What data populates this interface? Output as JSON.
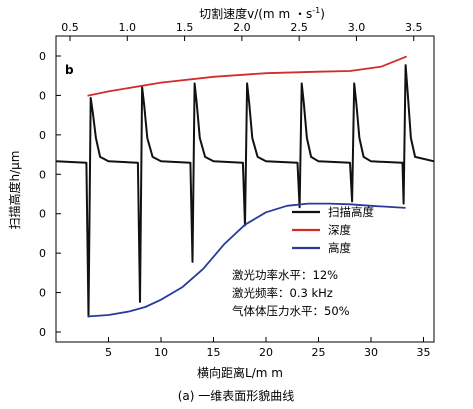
{
  "chart_data": {
    "type": "line",
    "panel_label": "b",
    "caption": "(a) 一维表面形貌曲线",
    "xlabel": "横向距离L/m m",
    "ylabel": "扫描高度h/μm",
    "top_xlabel": "切割速度v/(m m ・s",
    "top_xlabel_sup": "-1",
    "top_xlabel_close": ")",
    "xlim": [
      0,
      36
    ],
    "x_ticks": [
      5,
      10,
      15,
      20,
      25,
      30,
      35
    ],
    "top_xlim": [
      0.5,
      3.7
    ],
    "top_x_ticks": [
      "0.5",
      "1.0",
      "1.5",
      "2.0",
      "2.5",
      "3.0",
      "3.5"
    ],
    "y_tick_labels": [
      "0",
      "0",
      "0",
      "0",
      "0",
      "0",
      "0",
      "0"
    ],
    "series": [
      {
        "name": "扫描高度",
        "color": "#111111",
        "x": [
          0,
          2.9,
          3.1,
          3.3,
          3.5,
          3.8,
          4.2,
          5,
          7.8,
          8.0,
          8.2,
          8.4,
          8.7,
          9.2,
          10,
          12.8,
          13.0,
          13.2,
          13.4,
          13.7,
          14.2,
          15,
          17.8,
          18.0,
          18.2,
          18.4,
          18.7,
          19.2,
          20,
          23.0,
          23.2,
          23.4,
          23.6,
          23.9,
          24.3,
          25,
          28.0,
          28.2,
          28.4,
          28.6,
          28.9,
          29.3,
          30,
          33.0,
          33.1,
          33.3,
          33.5,
          33.8,
          34.2,
          36
        ],
        "y": [
          -3.2,
          -3.4,
          -24.5,
          5.5,
          3.5,
          0,
          -2.6,
          -3.2,
          -3.4,
          -22.5,
          7.0,
          4.5,
          0,
          -2.6,
          -3.2,
          -3.4,
          -17.0,
          7.5,
          4.8,
          0,
          -2.6,
          -3.2,
          -3.4,
          -12.0,
          7.5,
          4.8,
          0,
          -2.6,
          -3.2,
          -3.4,
          -9.5,
          7.5,
          4.8,
          0,
          -2.6,
          -3.2,
          -3.4,
          -8.7,
          7.5,
          4.8,
          0,
          -2.6,
          -3.2,
          -3.4,
          -9.0,
          10.0,
          6.0,
          0,
          -2.6,
          -3.2
        ]
      },
      {
        "name": "深度",
        "color": "#d42b2b",
        "x": [
          3.0,
          5,
          10,
          15,
          20,
          25,
          28,
          31,
          33.4
        ],
        "y": [
          5.8,
          6.4,
          7.6,
          8.4,
          8.9,
          9.1,
          9.2,
          9.8,
          11.2
        ]
      },
      {
        "name": "高度",
        "color": "#2a3a9c",
        "x": [
          3.0,
          5,
          7,
          8.5,
          10,
          12,
          14,
          16,
          18,
          20,
          22,
          24,
          26,
          28,
          30,
          33.3
        ],
        "y": [
          -24.5,
          -24.3,
          -23.8,
          -23.2,
          -22.2,
          -20.5,
          -18.0,
          -14.6,
          -11.9,
          -10.2,
          -9.3,
          -9.0,
          -9.0,
          -9.1,
          -9.3,
          -9.6
        ]
      }
    ],
    "legend_position": "right-middle",
    "annotations": [
      "激光功率水平：12%",
      "激光频率：0.3 kHz",
      "气体体压力水平：50%"
    ]
  }
}
